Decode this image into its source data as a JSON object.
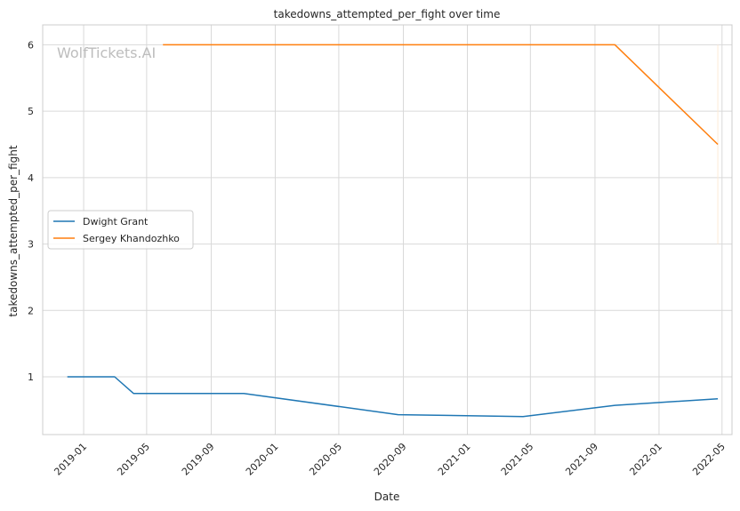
{
  "chart_data": {
    "type": "line",
    "title": "takedowns_attempted_per_fight over time",
    "xlabel": "Date",
    "ylabel": "takedowns_attempted_per_fight",
    "watermark": "WolfTickets.AI",
    "x_ticks": [
      "2019-01",
      "2019-05",
      "2019-09",
      "2020-01",
      "2020-05",
      "2020-09",
      "2021-01",
      "2021-05",
      "2021-09",
      "2022-01",
      "2022-05"
    ],
    "y_ticks": [
      "1",
      "2",
      "3",
      "4",
      "5",
      "6"
    ],
    "xlim": [
      "2018-10-15",
      "2022-05-20"
    ],
    "ylim": [
      0.13,
      6.3
    ],
    "grid": true,
    "legend_position": "center-left",
    "series": [
      {
        "name": "Dwight Grant",
        "color": "#1f77b4",
        "points": [
          {
            "date": "2018-12-01",
            "value": 1.0
          },
          {
            "date": "2019-03-01",
            "value": 1.0
          },
          {
            "date": "2019-04-06",
            "value": 0.75
          },
          {
            "date": "2019-11-02",
            "value": 0.75
          },
          {
            "date": "2020-08-22",
            "value": 0.43
          },
          {
            "date": "2021-04-17",
            "value": 0.4
          },
          {
            "date": "2021-10-09",
            "value": 0.57
          },
          {
            "date": "2022-04-23",
            "value": 0.67
          }
        ]
      },
      {
        "name": "Sergey Khandozhko",
        "color": "#ff7f0e",
        "points": [
          {
            "date": "2019-06-01",
            "value": 6.0
          },
          {
            "date": "2021-10-09",
            "value": 6.0
          },
          {
            "date": "2022-04-23",
            "value": 4.5
          }
        ]
      }
    ],
    "annotation_line": {
      "date": "2022-04-23",
      "from": 3.0,
      "to": 6.0,
      "color": "#fdebd6"
    }
  }
}
